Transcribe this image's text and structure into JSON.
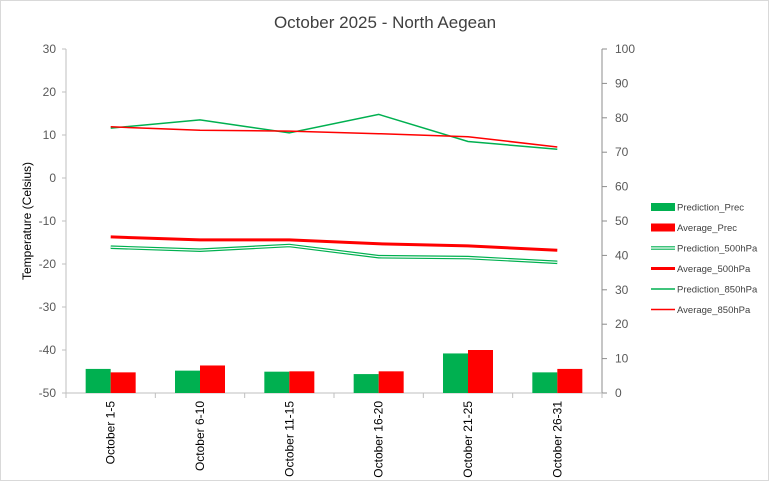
{
  "chart_data": {
    "type": "bar",
    "title": "October 2025 - North Aegean",
    "ylabel": "Temperature (Celsius)",
    "y2label": "",
    "xlabel": "",
    "ylim": [
      -50,
      30
    ],
    "y2lim": [
      0,
      100
    ],
    "yticks": [
      "30",
      "20",
      "10",
      "0",
      "-10",
      "-20",
      "-30",
      "-40",
      "-50"
    ],
    "y2ticks": [
      "100",
      "90",
      "80",
      "70",
      "60",
      "50",
      "40",
      "30",
      "20",
      "10",
      "0"
    ],
    "categories": [
      "October 1-5",
      "October 6-10",
      "October 11-15",
      "October 16-20",
      "October 21-25",
      "October 26-31"
    ],
    "grid": false,
    "legend_position": "right",
    "bar_series": [
      {
        "name": "Prediction_Prec",
        "axis": "secondary",
        "color": "#00b050",
        "values": [
          7,
          6.5,
          6.2,
          5.5,
          11.5,
          6
        ]
      },
      {
        "name": "Average_Prec",
        "axis": "secondary",
        "color": "#ff0000",
        "values": [
          6,
          8,
          6.3,
          6.3,
          12.5,
          7
        ]
      }
    ],
    "line_series": [
      {
        "name": "Prediction_500hPa",
        "axis": "primary",
        "color": "#00b050",
        "style": "double",
        "values": [
          -16.1,
          -16.8,
          -15.7,
          -18.3,
          -18.5,
          -19.6
        ]
      },
      {
        "name": "Average_500hPa",
        "axis": "primary",
        "color": "#ff0000",
        "style": "thick",
        "values": [
          -13.7,
          -14.4,
          -14.4,
          -15.3,
          -15.8,
          -16.8
        ]
      },
      {
        "name": "Prediction_850hPa",
        "axis": "primary",
        "color": "#00b050",
        "style": "thin",
        "values": [
          11.6,
          13.5,
          10.5,
          14.8,
          8.5,
          6.7
        ]
      },
      {
        "name": "Average_850hPa",
        "axis": "primary",
        "color": "#ff0000",
        "style": "thin",
        "values": [
          11.9,
          11.1,
          10.9,
          10.3,
          9.6,
          7.2
        ]
      }
    ]
  }
}
